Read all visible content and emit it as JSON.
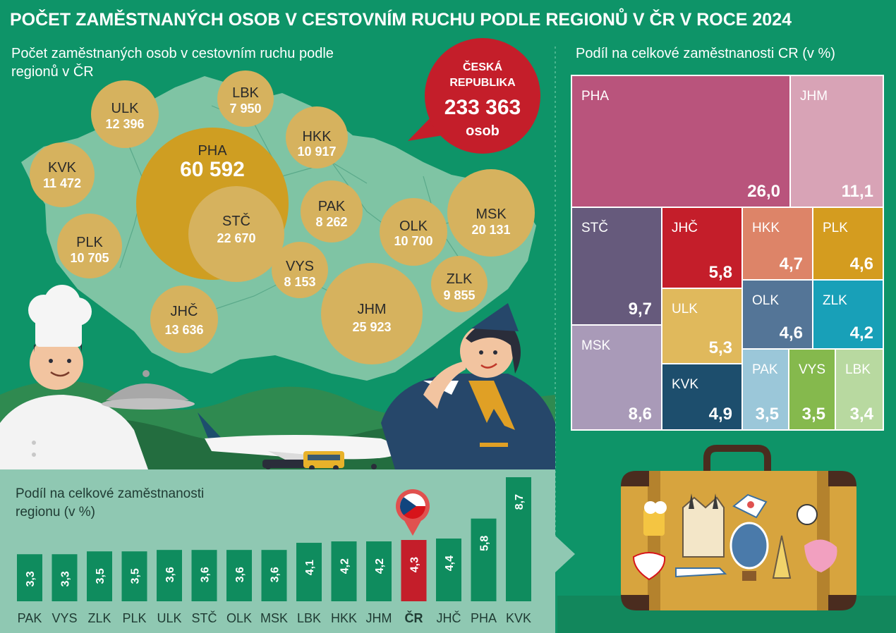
{
  "header": {
    "title": "POČET ZAMĚSTNANÝCH OSOB V CESTOVNÍM RUCHU PODLE REGIONŮ V ČR V ROCE 2024"
  },
  "colors": {
    "background": "#0e9468",
    "bubble": "#d6b25e",
    "bubble_large": "#cf9e22",
    "bubble_mid": "#c8a44e",
    "map": "#7fc4a4",
    "cr_bubble": "#c41e2a",
    "bar": "#0f8c5e",
    "bar_highlight": "#c41e2a",
    "bar_panel": "#8fc8b2"
  },
  "chart_data": [
    {
      "type": "bubble",
      "title": "Počet zaměstnaných osob v cestovním ruchu podle regionů v ČR",
      "regions": [
        "PHA",
        "STČ",
        "JHM",
        "MSK",
        "JHČ",
        "ULK",
        "KVK",
        "HKK",
        "PLK",
        "OLK",
        "ZLK",
        "PAK",
        "VYS",
        "LBK"
      ],
      "labels": [
        "60 592",
        "22 670",
        "25 923",
        "20 131",
        "13 636",
        "12 396",
        "11 472",
        "10 917",
        "10 705",
        "10 700",
        "9 855",
        "8 262",
        "8 153",
        "7 950"
      ],
      "values": [
        60592,
        22670,
        25923,
        20131,
        13636,
        12396,
        11472,
        10917,
        10705,
        10700,
        9855,
        8262,
        8153,
        7950
      ],
      "total": {
        "name": "ČESKÁ REPUBLIKA",
        "label": "233 363",
        "value": 233363,
        "unit": "osob"
      }
    },
    {
      "type": "treemap",
      "title": "Podíl na celkové zaměstnanosti CR (v %)",
      "regions": [
        "PHA",
        "JHM",
        "STČ",
        "JHČ",
        "HKK",
        "PLK",
        "MSK",
        "ULK",
        "OLK",
        "ZLK",
        "KVK",
        "PAK",
        "VYS",
        "LBK"
      ],
      "labels": [
        "26,0",
        "11,1",
        "9,7",
        "5,8",
        "4,7",
        "4,6",
        "8,6",
        "5,3",
        "4,6",
        "4,2",
        "4,9",
        "3,5",
        "3,5",
        "3,4"
      ],
      "values": [
        26.0,
        11.1,
        9.7,
        5.8,
        4.7,
        4.6,
        8.6,
        5.3,
        4.6,
        4.2,
        4.9,
        3.5,
        3.5,
        3.4
      ],
      "colors": [
        "#b9547c",
        "#d8a3b6",
        "#665a7c",
        "#c41e2a",
        "#dd8468",
        "#d49c1f",
        "#a99ab8",
        "#e0b95c",
        "#547597",
        "#18a0b8",
        "#1d4e6d",
        "#9bc7d9",
        "#85b94d",
        "#b8d9a0"
      ]
    },
    {
      "type": "bar",
      "title": "Podíl na celkové zaměstnanosti regionu (v %)",
      "categories": [
        "PAK",
        "VYS",
        "ZLK",
        "PLK",
        "ULK",
        "STČ",
        "OLK",
        "MSK",
        "LBK",
        "HKK",
        "JHM",
        "ČR",
        "JHČ",
        "PHA",
        "KVK"
      ],
      "labels": [
        "3,3",
        "3,3",
        "3,5",
        "3,5",
        "3,6",
        "3,6",
        "3,6",
        "3,6",
        "4,1",
        "4,2",
        "4,2",
        "4,3",
        "4,4",
        "5,8",
        "8,7"
      ],
      "values": [
        3.3,
        3.3,
        3.5,
        3.5,
        3.6,
        3.6,
        3.6,
        3.6,
        4.1,
        4.2,
        4.2,
        4.3,
        4.4,
        5.8,
        8.7
      ],
      "highlight": "ČR"
    }
  ]
}
